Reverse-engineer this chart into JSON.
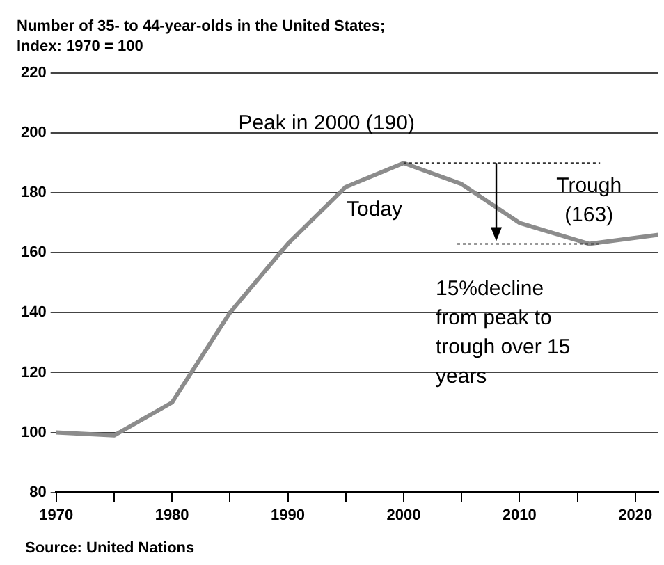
{
  "chart_data": {
    "type": "line",
    "title": "Number of 35- to 44-year-olds in the United States;",
    "subtitle": "Index: 1970 = 100",
    "x": [
      1970,
      1975,
      1980,
      1985,
      1990,
      1995,
      2000,
      2005,
      2010,
      2016,
      2022
    ],
    "series": [
      {
        "color": "#8c8c8c",
        "values": [
          100,
          99,
          110,
          140,
          163,
          182,
          190,
          183,
          170,
          163,
          166
        ]
      }
    ],
    "xlim": [
      1970,
      2022
    ],
    "xticks": [
      1970,
      {
        "value": 1975,
        "label": null
      },
      1980,
      {
        "value": 1985,
        "label": null
      },
      1990,
      {
        "value": 1995,
        "label": null
      },
      2000,
      {
        "value": 2005,
        "label": null
      },
      2010,
      {
        "value": 2015,
        "label": null
      },
      2020
    ],
    "ylim": [
      80,
      220
    ],
    "yticks": [
      80,
      100,
      120,
      140,
      160,
      180,
      200,
      220
    ],
    "grid": "y",
    "legend": false,
    "marker": "none",
    "line_style": "solid",
    "annotations": [
      {
        "text": "Peak in 2000 (190)",
        "x": 2000,
        "y": 190
      },
      {
        "text": "Today",
        "x": 1997,
        "y": 184
      },
      {
        "text": "Trough (163)",
        "x": 2016,
        "y": 163
      },
      "15%decline from peak to trough over 15 years",
      "Source: United Nations"
    ]
  }
}
